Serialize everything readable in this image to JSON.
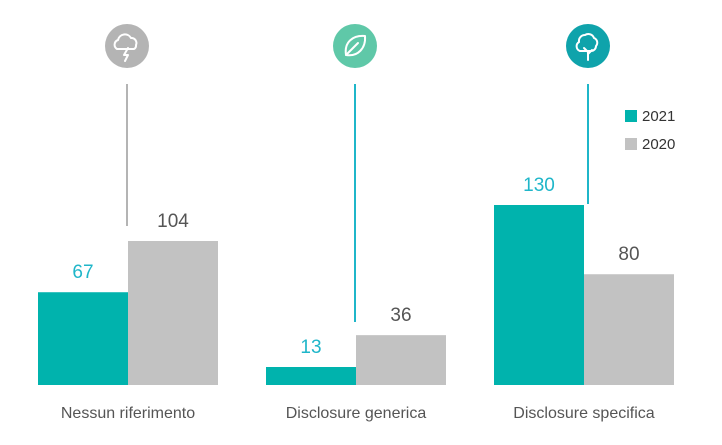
{
  "chart_data": {
    "type": "bar",
    "categories": [
      "Nessun riferimento",
      "Disclosure generica",
      "Disclosure specifica"
    ],
    "series": [
      {
        "name": "2021",
        "values": [
          67,
          13,
          130
        ],
        "color": "#00b3ad",
        "label_color": "#1fb6c9"
      },
      {
        "name": "2020",
        "values": [
          104,
          36,
          80
        ],
        "color": "#c2c2c2",
        "label_color": "#555555"
      }
    ],
    "category_icons": [
      {
        "icon": "cloud-lightning-icon",
        "color": "#b4b4b4",
        "line_color": "#b4b4b4"
      },
      {
        "icon": "leaf-icon",
        "color": "#5fc8a8",
        "line_color": "#1fb6c9"
      },
      {
        "icon": "tree-icon",
        "color": "#0fa3ab",
        "line_color": "#1fb6c9"
      }
    ],
    "ylim": [
      0,
      130
    ],
    "grid": false,
    "legend_position": "top-right"
  }
}
